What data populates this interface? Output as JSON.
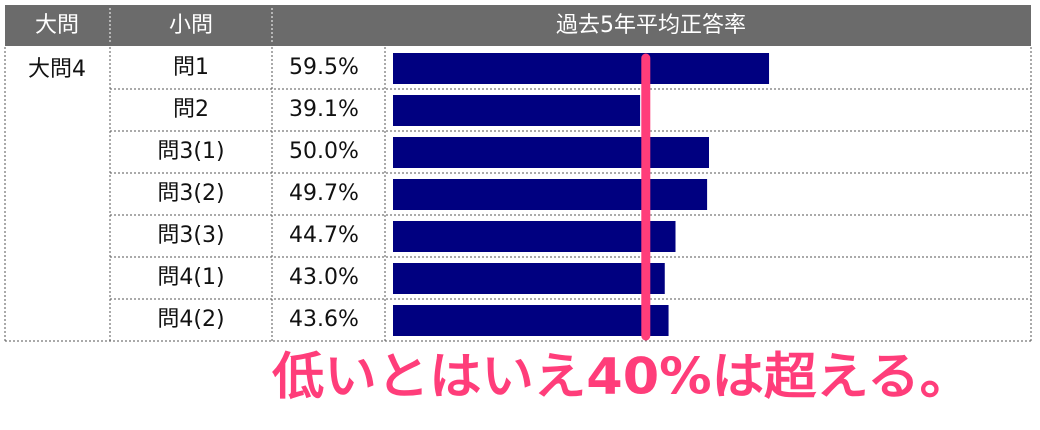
{
  "chart_data": {
    "type": "bar",
    "headers": [
      "大問",
      "小問",
      "過去5年平均正答率"
    ],
    "group": "大問4",
    "categories": [
      "問1",
      "問2",
      "問3(1)",
      "問3(2)",
      "問3(3)",
      "問4(1)",
      "問4(2)"
    ],
    "values": [
      59.5,
      39.1,
      50.0,
      49.7,
      44.7,
      43.0,
      43.6
    ],
    "value_labels": [
      "59.5%",
      "39.1%",
      "50.0%",
      "49.7%",
      "44.7%",
      "43.0%",
      "43.6%"
    ],
    "color": "#000080",
    "xlim": [
      0,
      100
    ],
    "reference_line": 40,
    "reference_color": "#ff3d7a",
    "annotation": "低いとはいえ40%は超える。"
  }
}
